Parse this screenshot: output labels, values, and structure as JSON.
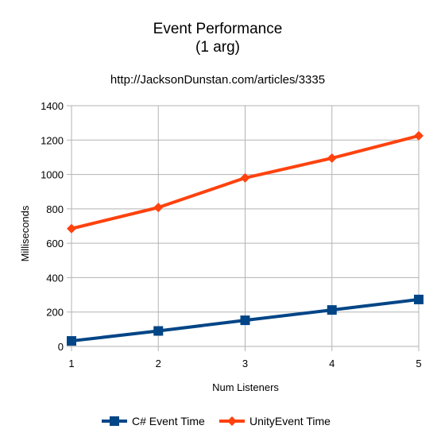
{
  "chart_data": {
    "type": "line",
    "title_lines": [
      "Event Performance",
      "(1 arg)"
    ],
    "subtitle": "http://JacksonDunstan.com/articles/3335",
    "xlabel": "Num Listeners",
    "ylabel": "Milliseconds",
    "x": [
      1,
      2,
      3,
      4,
      5
    ],
    "xlim": [
      1,
      5
    ],
    "ylim": [
      0,
      1400
    ],
    "yticks": [
      0,
      200,
      400,
      600,
      800,
      1000,
      1200,
      1400
    ],
    "grid": true,
    "legend_position": "bottom",
    "series": [
      {
        "name": "C# Event Time",
        "values": [
          32,
          90,
          152,
          212,
          273
        ],
        "color": "#004586",
        "marker": "square"
      },
      {
        "name": "UnityEvent Time",
        "values": [
          685,
          808,
          980,
          1095,
          1225
        ],
        "color": "#ff420e",
        "marker": "diamond"
      }
    ]
  }
}
